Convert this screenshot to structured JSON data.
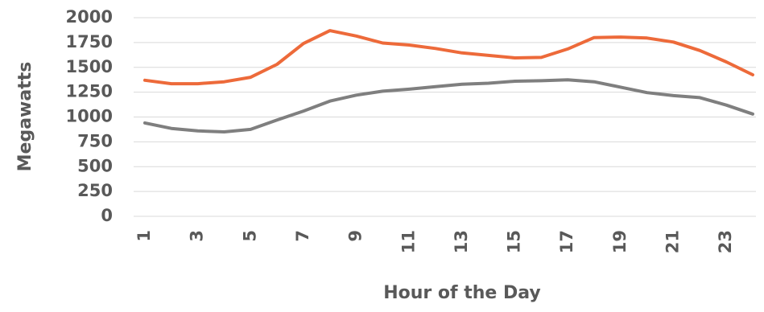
{
  "chart_data": {
    "type": "line",
    "title": "",
    "xlabel": "Hour of the Day",
    "ylabel": "Megawatts",
    "ylim": [
      0,
      2000
    ],
    "yticks": [
      "0",
      "250",
      "500",
      "750",
      "1000",
      "1250",
      "1500",
      "1750",
      "2000"
    ],
    "x": [
      1,
      2,
      3,
      4,
      5,
      6,
      7,
      8,
      9,
      10,
      11,
      12,
      13,
      14,
      15,
      16,
      17,
      18,
      19,
      20,
      21,
      22,
      23,
      24
    ],
    "xtick_labels": [
      "1",
      "3",
      "5",
      "7",
      "9",
      "11",
      "13",
      "15",
      "17",
      "19",
      "21",
      "23"
    ],
    "grid": true,
    "legend": "none",
    "series": [
      {
        "color": "#ed6a3a",
        "values": [
          1370,
          1335,
          1335,
          1355,
          1400,
          1530,
          1740,
          1870,
          1815,
          1745,
          1725,
          1690,
          1645,
          1620,
          1595,
          1600,
          1685,
          1800,
          1805,
          1795,
          1755,
          1670,
          1555,
          1425
        ]
      },
      {
        "color": "#7f7f7f",
        "values": [
          940,
          885,
          860,
          850,
          875,
          970,
          1060,
          1160,
          1220,
          1260,
          1280,
          1305,
          1330,
          1340,
          1360,
          1365,
          1375,
          1355,
          1300,
          1245,
          1215,
          1195,
          1120,
          1030
        ]
      }
    ]
  }
}
